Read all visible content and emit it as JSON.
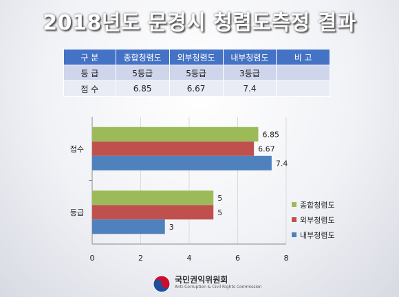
{
  "title": "2018년도 문경시 청렴도측정 결과",
  "summary_table": {
    "headers": [
      "구 분",
      "종합청렴도",
      "외부청렴도",
      "내부청렴도",
      "비 고"
    ],
    "rows": [
      [
        "등 급",
        "5등급",
        "5등급",
        "3등급",
        ""
      ],
      [
        "점 수",
        "6.85",
        "6.67",
        "7.4",
        ""
      ]
    ]
  },
  "chart_data": {
    "type": "bar",
    "orientation": "horizontal",
    "categories": [
      "점수",
      "등급"
    ],
    "series": [
      {
        "name": "종합청렴도",
        "color": "#9bbb59",
        "values": [
          6.85,
          5
        ]
      },
      {
        "name": "외부청렴도",
        "color": "#c0504d",
        "values": [
          6.67,
          5
        ]
      },
      {
        "name": "내부청렴도",
        "color": "#4f81bd",
        "values": [
          7.4,
          3
        ]
      }
    ],
    "data_labels": [
      [
        "6.85",
        "6.67",
        "7.4"
      ],
      [
        "5",
        "5",
        "3"
      ]
    ],
    "xlim": [
      0,
      8
    ],
    "x_ticks": [
      0,
      2,
      4,
      6,
      8
    ],
    "grid": true,
    "legend_position": "right"
  },
  "footer": {
    "org_name": "국민권익위원회",
    "org_subtitle": "Anti-Corruption & Civil Rights Commission"
  }
}
